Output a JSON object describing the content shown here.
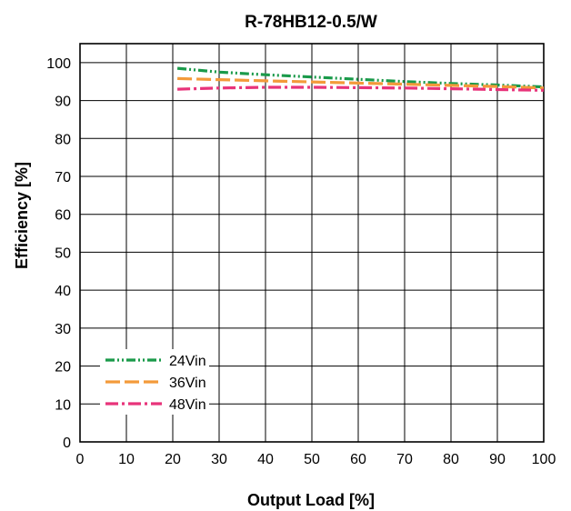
{
  "chart_data": {
    "type": "line",
    "title": "R-78HB12-0.5/W",
    "xlabel": "Output Load [%]",
    "ylabel": "Efficiency [%]",
    "xlim": [
      0,
      100
    ],
    "ylim": [
      0,
      105
    ],
    "xticks": [
      0,
      10,
      20,
      30,
      40,
      50,
      60,
      70,
      80,
      90,
      100
    ],
    "yticks": [
      0,
      10,
      20,
      30,
      40,
      50,
      60,
      70,
      80,
      90,
      100
    ],
    "grid": true,
    "legend_position": "bottom-left",
    "series": [
      {
        "name": "24Vin",
        "color": "#1a9a4a",
        "dash": "dash-dot-dot",
        "x": [
          21,
          30,
          40,
          50,
          60,
          70,
          80,
          90,
          100
        ],
        "y": [
          98.5,
          97.5,
          96.8,
          96.2,
          95.6,
          95.0,
          94.5,
          94.1,
          93.6
        ]
      },
      {
        "name": "36Vin",
        "color": "#f39a3a",
        "dash": "long-dash",
        "x": [
          21,
          30,
          40,
          50,
          60,
          70,
          80,
          90,
          100
        ],
        "y": [
          95.8,
          95.5,
          95.2,
          94.9,
          94.6,
          94.3,
          94.0,
          93.7,
          93.3
        ]
      },
      {
        "name": "48Vin",
        "color": "#e8337a",
        "dash": "dash-dot",
        "x": [
          21,
          30,
          40,
          50,
          60,
          70,
          80,
          90,
          100
        ],
        "y": [
          93.0,
          93.3,
          93.5,
          93.5,
          93.4,
          93.3,
          93.1,
          92.9,
          92.7
        ]
      }
    ]
  }
}
